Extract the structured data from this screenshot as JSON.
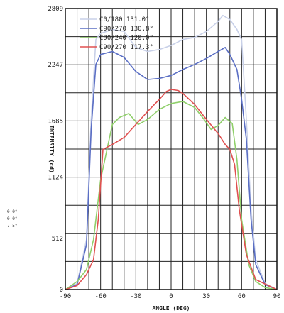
{
  "chart_data": {
    "type": "line",
    "xlabel": "ANGLE (DEG)",
    "ylabel": "INTENSITY (cd)",
    "xlim": [
      -90,
      90
    ],
    "ylim": [
      0,
      2809
    ],
    "x_ticks": [
      -90,
      -60,
      -30,
      0,
      30,
      60,
      90
    ],
    "y_ticks": [
      0,
      512,
      1124,
      1685,
      2247,
      2809
    ],
    "y_tick_labels": [
      "0",
      "512",
      "1124",
      "1685",
      "2247",
      "2809"
    ],
    "side_notes": [
      "0.0°",
      "0.0°",
      "7.5°"
    ],
    "grid": true,
    "legend_position": "top-center",
    "series": [
      {
        "name": "C0/180 131.0°",
        "color": "#c8d0e8",
        "x": [
          -90,
          -80,
          -72,
          -68,
          -64,
          -60,
          -50,
          -40,
          -30,
          -20,
          -10,
          0,
          10,
          20,
          30,
          40,
          44,
          50,
          56,
          60,
          64,
          68,
          72,
          80,
          90
        ],
        "y": [
          0,
          60,
          500,
          1700,
          2500,
          2560,
          2600,
          2580,
          2420,
          2380,
          2400,
          2440,
          2500,
          2520,
          2580,
          2680,
          2740,
          2700,
          2600,
          2500,
          1700,
          800,
          300,
          60,
          0
        ]
      },
      {
        "name": "C90/270 130.8°",
        "color": "#5a6ec4",
        "x": [
          -90,
          -80,
          -72,
          -68,
          -64,
          -60,
          -50,
          -40,
          -30,
          -20,
          -10,
          0,
          10,
          20,
          30,
          40,
          46,
          50,
          56,
          60,
          64,
          68,
          72,
          80,
          90
        ],
        "y": [
          0,
          50,
          450,
          1600,
          2250,
          2350,
          2380,
          2320,
          2180,
          2100,
          2110,
          2140,
          2200,
          2250,
          2310,
          2380,
          2420,
          2350,
          2200,
          1900,
          1500,
          700,
          250,
          50,
          0
        ]
      },
      {
        "name": "C90/240 120.0°",
        "color": "#8fcf6a",
        "x": [
          -90,
          -80,
          -72,
          -66,
          -60,
          -50,
          -44,
          -36,
          -28,
          -20,
          -10,
          0,
          10,
          20,
          28,
          34,
          40,
          46,
          52,
          56,
          60,
          66,
          72,
          80,
          90
        ],
        "y": [
          0,
          80,
          200,
          500,
          1100,
          1650,
          1720,
          1760,
          1650,
          1700,
          1800,
          1860,
          1880,
          1820,
          1700,
          1600,
          1640,
          1720,
          1660,
          1300,
          700,
          250,
          80,
          20,
          0
        ]
      },
      {
        "name": "C90/270 117.3°",
        "color": "#e05050",
        "x": [
          -90,
          -80,
          -72,
          -66,
          -62,
          -58,
          -50,
          -40,
          -30,
          -20,
          -10,
          -4,
          0,
          6,
          10,
          20,
          30,
          40,
          46,
          50,
          54,
          58,
          64,
          72,
          90
        ],
        "y": [
          0,
          40,
          150,
          300,
          700,
          1400,
          1450,
          1520,
          1650,
          1780,
          1900,
          1980,
          2000,
          1990,
          1960,
          1850,
          1700,
          1560,
          1450,
          1400,
          1250,
          800,
          350,
          100,
          0
        ]
      }
    ]
  }
}
